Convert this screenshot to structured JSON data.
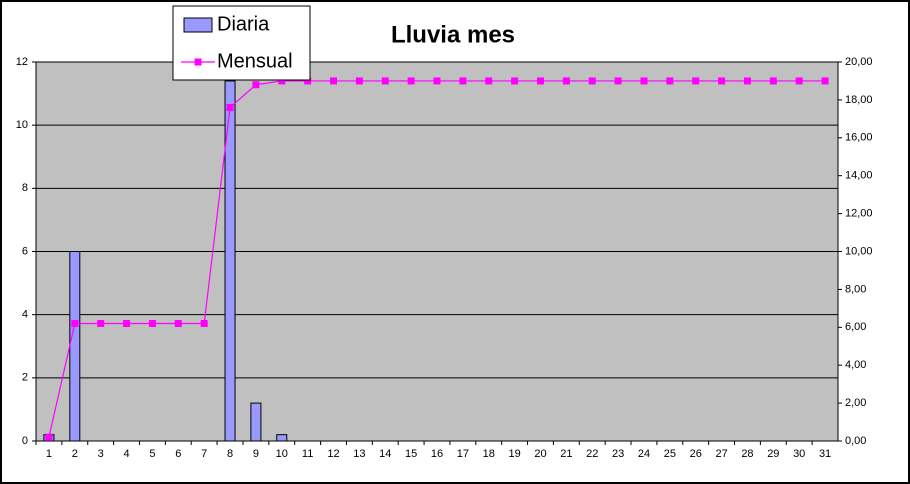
{
  "chart_data": {
    "type": "bar-line",
    "title": "Lluvia mes",
    "categories": [
      "1",
      "2",
      "3",
      "4",
      "5",
      "6",
      "7",
      "8",
      "9",
      "10",
      "11",
      "12",
      "13",
      "14",
      "15",
      "16",
      "17",
      "18",
      "19",
      "20",
      "21",
      "22",
      "23",
      "24",
      "25",
      "26",
      "27",
      "28",
      "29",
      "30",
      "31"
    ],
    "series": [
      {
        "name": "Diaria",
        "type": "bar",
        "color": "#9999ff",
        "values": [
          0.2,
          6,
          0,
          0,
          0,
          0,
          0,
          11.4,
          1.2,
          0.2,
          0,
          0,
          0,
          0,
          0,
          0,
          0,
          0,
          0,
          0,
          0,
          0,
          0,
          0,
          0,
          0,
          0,
          0,
          0,
          0,
          0
        ]
      },
      {
        "name": "Mensual",
        "type": "line",
        "axis": "y2",
        "color": "#ff00ff",
        "values": [
          0.2,
          6.2,
          6.2,
          6.2,
          6.2,
          6.2,
          6.2,
          17.6,
          18.8,
          19,
          19,
          19,
          19,
          19,
          19,
          19,
          19,
          19,
          19,
          19,
          19,
          19,
          19,
          19,
          19,
          19,
          19,
          19,
          19,
          19,
          19
        ]
      }
    ],
    "ylim": [
      0,
      12
    ],
    "yticks": [
      0,
      2,
      4,
      6,
      8,
      10,
      12
    ],
    "y2lim": [
      0,
      20
    ],
    "y2ticks": [
      {
        "value": 0,
        "label": "0,00"
      },
      {
        "value": 2,
        "label": "2,00"
      },
      {
        "value": 4,
        "label": "4,00"
      },
      {
        "value": 6,
        "label": "6,00"
      },
      {
        "value": 8,
        "label": "8,00"
      },
      {
        "value": 10,
        "label": "10,00"
      },
      {
        "value": 12,
        "label": "12,00"
      },
      {
        "value": 14,
        "label": "14,00"
      },
      {
        "value": 16,
        "label": "16,00"
      },
      {
        "value": 18,
        "label": "18,00"
      },
      {
        "value": 20,
        "label": "20,00"
      }
    ],
    "grid": true,
    "plot_background": "#c0c0c0"
  }
}
